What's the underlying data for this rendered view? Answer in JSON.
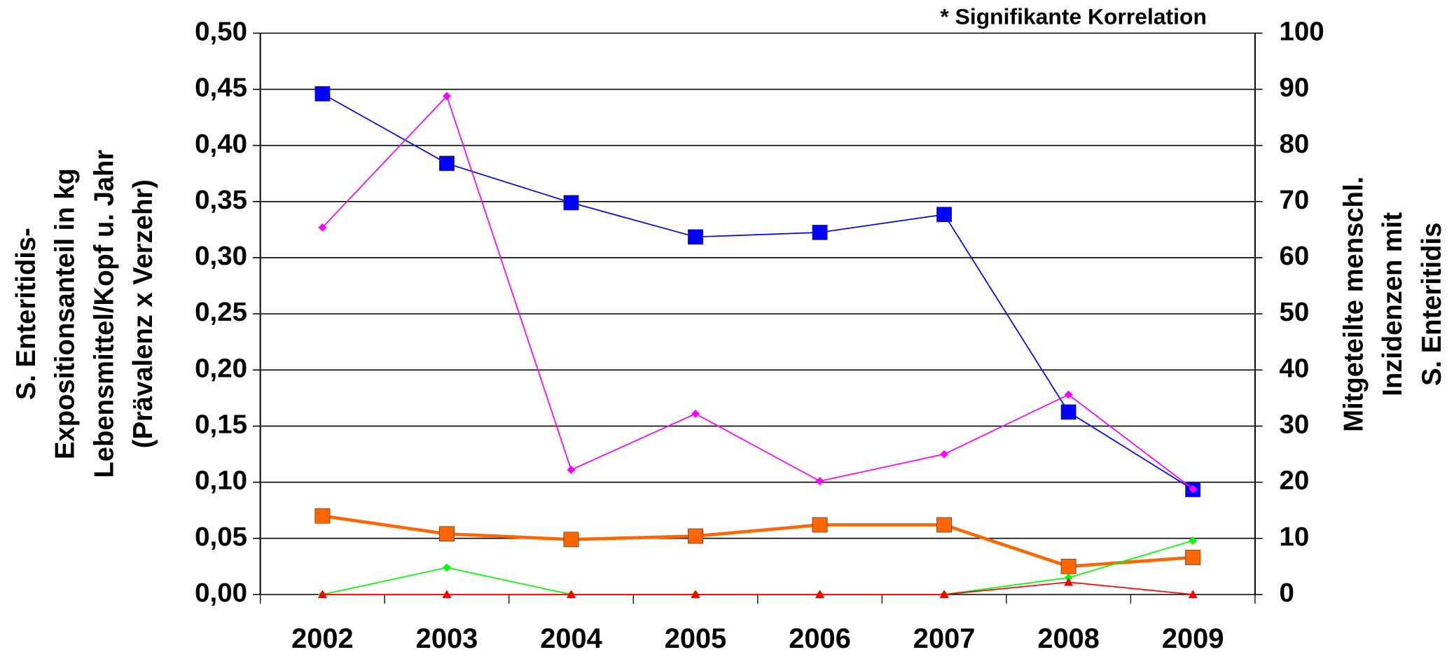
{
  "chart_data": {
    "type": "line",
    "annotation": "* Signifikante Korrelation",
    "ylabel": [
      "S. Enteritidis-",
      "Expositionsanteil in kg",
      "Lebensmittel/Kopf u. Jahr",
      "(Prävalenz x Verzehr)"
    ],
    "y2label": [
      "Mitgeteilte menschl.",
      "Inzidenzen mit",
      "S. Enteritidis"
    ],
    "categories": [
      "2002",
      "2003",
      "2004",
      "2005",
      "2006",
      "2007",
      "2008",
      "2009"
    ],
    "ylim": [
      0,
      0.5
    ],
    "yticks": [
      {
        "value": 0,
        "label": "0,00"
      },
      {
        "value": 0.05,
        "label": "0,05"
      },
      {
        "value": 0.1,
        "label": "0,10"
      },
      {
        "value": 0.15,
        "label": "0,15"
      },
      {
        "value": 0.2,
        "label": "0,20"
      },
      {
        "value": 0.25,
        "label": "0,25"
      },
      {
        "value": 0.3,
        "label": "0,30"
      },
      {
        "value": 0.35,
        "label": "0,35"
      },
      {
        "value": 0.4,
        "label": "0,40"
      },
      {
        "value": 0.45,
        "label": "0,45"
      },
      {
        "value": 0.5,
        "label": "0,50"
      }
    ],
    "y2lim": [
      0,
      100
    ],
    "y2ticks": [
      0,
      10,
      20,
      30,
      40,
      50,
      60,
      70,
      80,
      90,
      100
    ],
    "grid": true,
    "series": [
      {
        "color": "#0000ff",
        "marker": "square",
        "axis": "y2",
        "values": [
          89.2,
          76.8,
          69.8,
          63.7,
          64.5,
          67.7,
          32.5,
          18.7
        ]
      },
      {
        "color": "#ff00ff",
        "marker": "diamond",
        "values": [
          0.327,
          0.444,
          0.111,
          0.161,
          0.101,
          0.125,
          0.178,
          0.094
        ]
      },
      {
        "color": "#ff6600",
        "marker": "square",
        "values": [
          0.07,
          0.054,
          0.049,
          0.052,
          0.062,
          0.062,
          0.025,
          0.033
        ]
      },
      {
        "color": "#00ff00",
        "marker": "diamond",
        "values": [
          0,
          0.024,
          0,
          0,
          0,
          0,
          0.015,
          0.048
        ]
      },
      {
        "color": "#ff0000",
        "marker": "triangle",
        "values": [
          0,
          0,
          0,
          0,
          0,
          0,
          0.011,
          0
        ]
      }
    ]
  }
}
